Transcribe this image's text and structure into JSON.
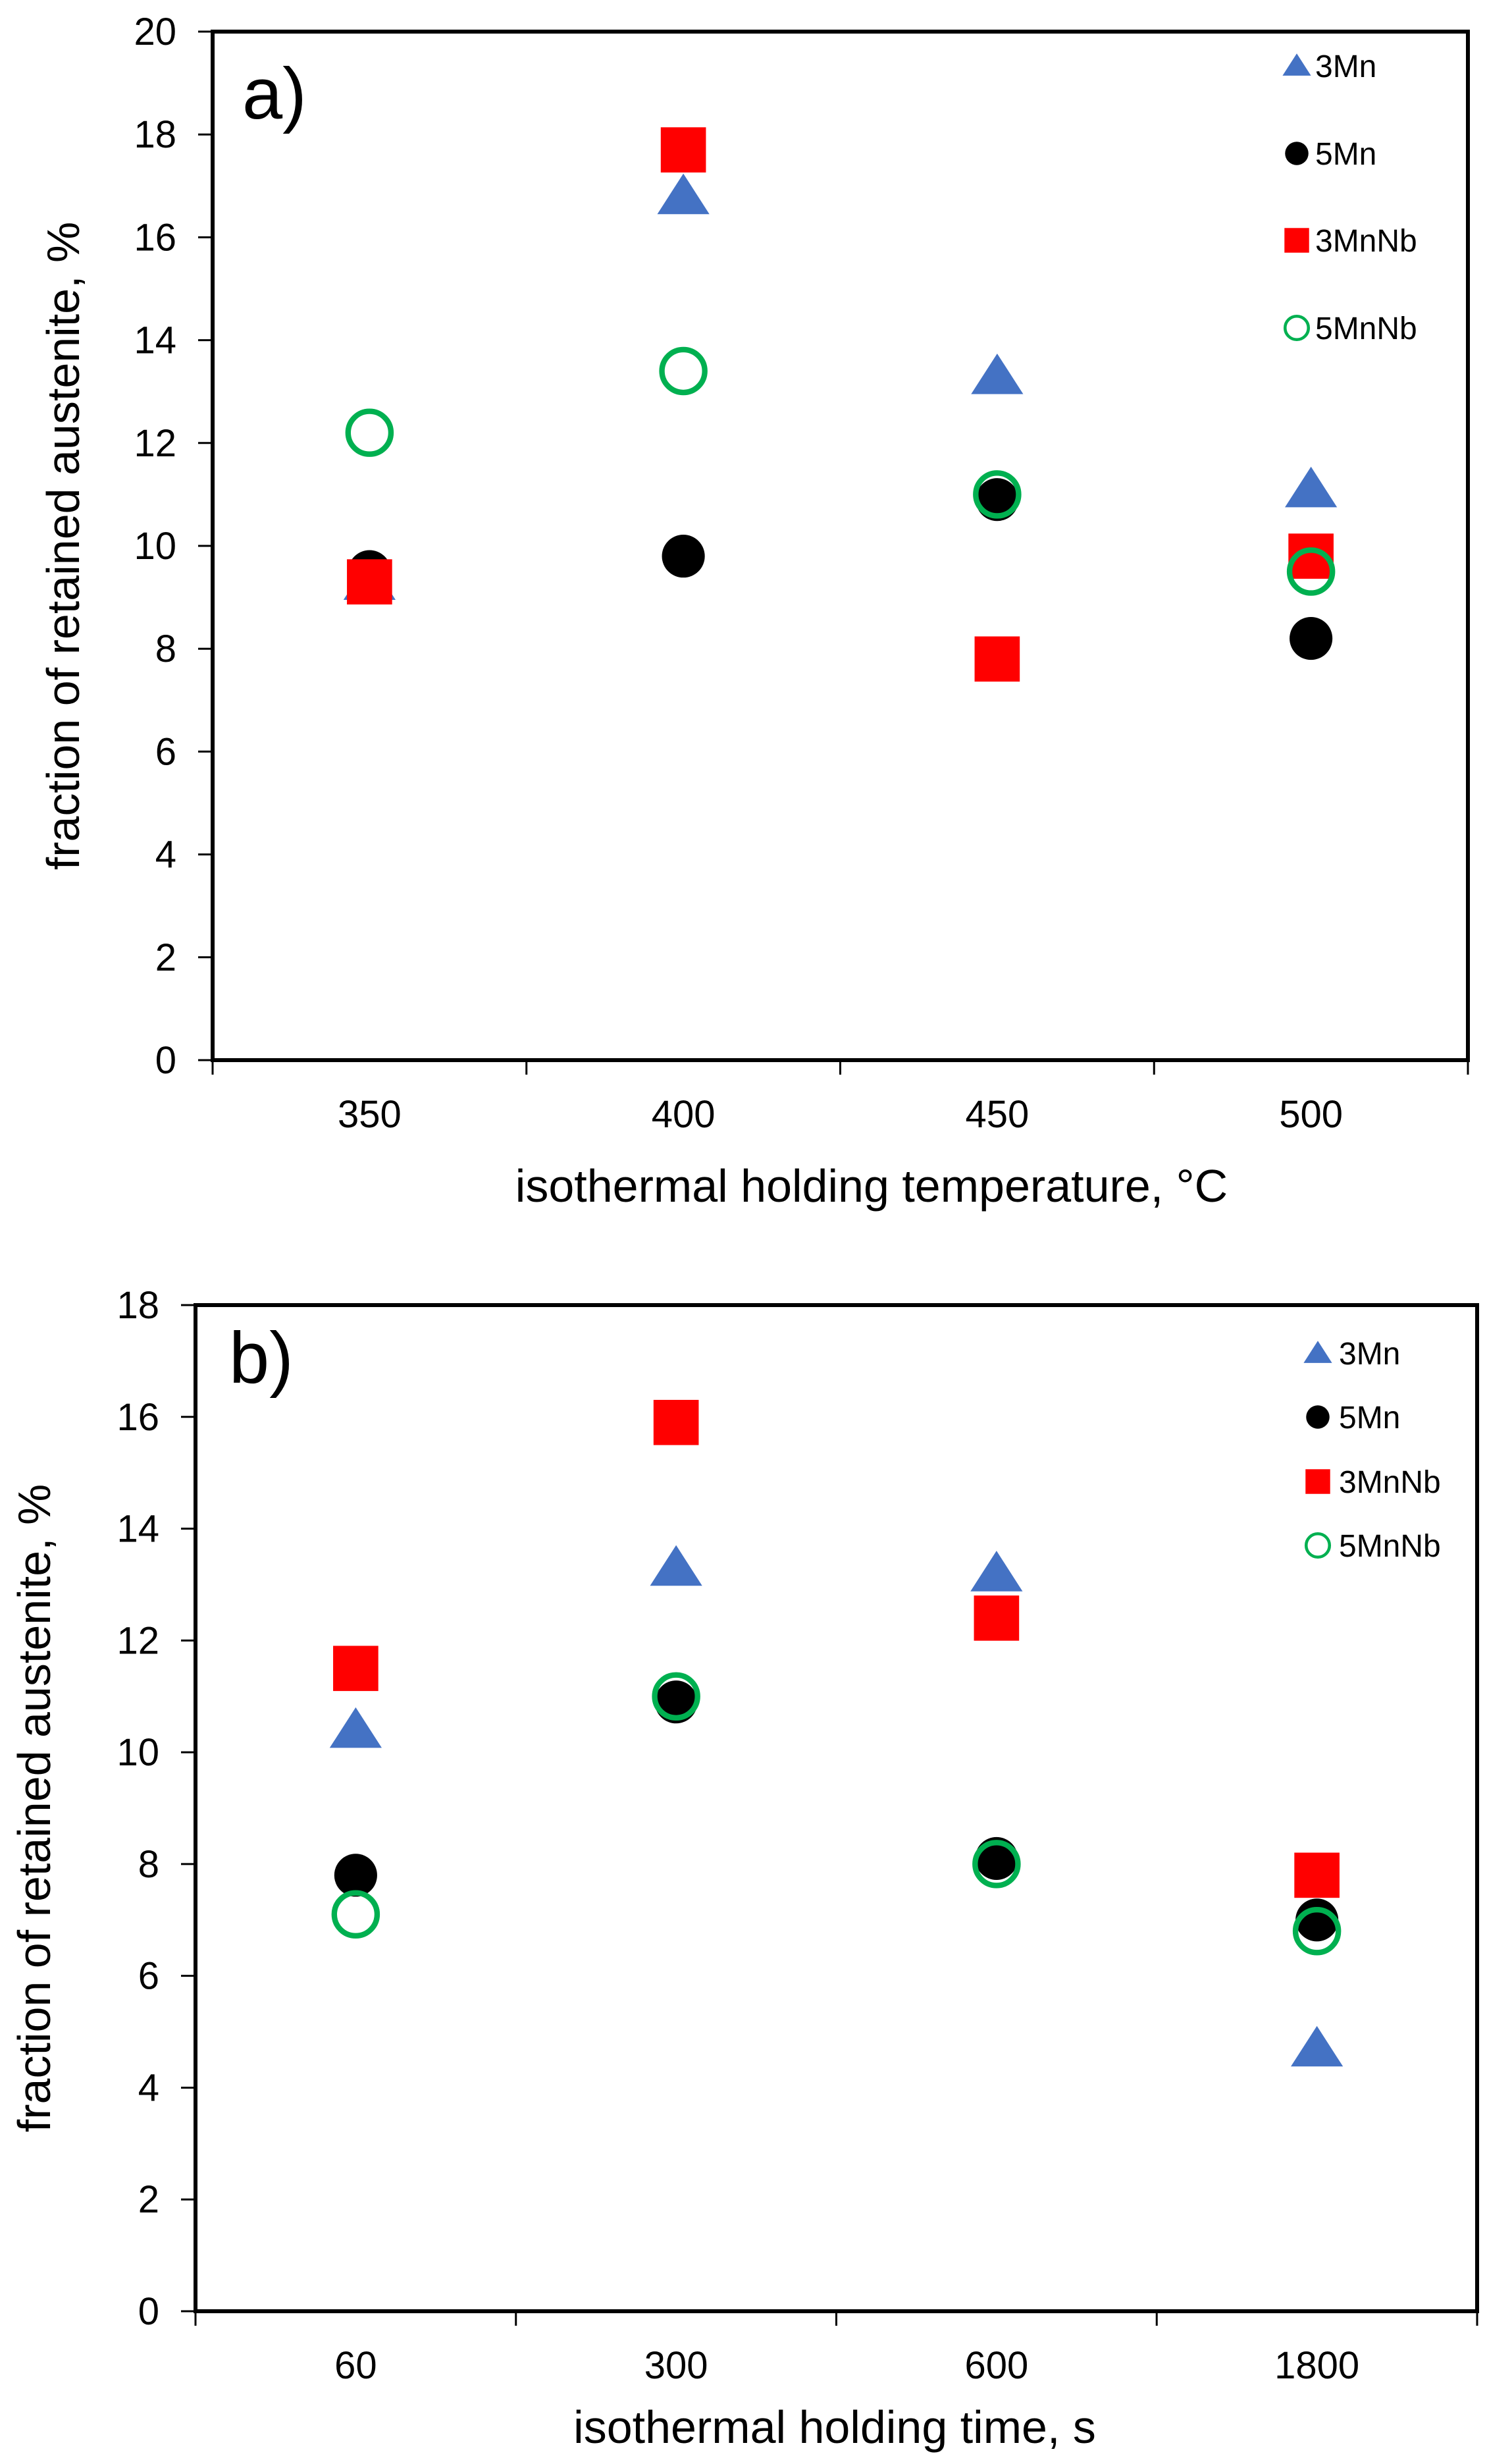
{
  "chart_data": [
    {
      "type": "scatter",
      "panel_label": "a)",
      "xlabel": "isothermal holding temperature, °C",
      "ylabel": "fraction of retained austenite, %",
      "categories": [
        "350",
        "400",
        "450",
        "500"
      ],
      "ylim": [
        0,
        20
      ],
      "yticks": [
        "0",
        "2",
        "4",
        "6",
        "8",
        "10",
        "12",
        "14",
        "16",
        "18",
        "20"
      ],
      "grid": false,
      "legend_position": "top-right",
      "series": [
        {
          "name": "3Mn",
          "marker": "triangle",
          "color": "#4472C4",
          "values": [
            9.3,
            16.8,
            13.3,
            11.1
          ]
        },
        {
          "name": "5Mn",
          "marker": "filled-circle",
          "color": "#000000",
          "values": [
            9.5,
            9.8,
            10.9,
            8.2
          ]
        },
        {
          "name": "3MnNb",
          "marker": "square",
          "color": "#FF0000",
          "values": [
            9.3,
            17.7,
            7.8,
            9.8
          ]
        },
        {
          "name": "5MnNb",
          "marker": "open-circle",
          "color": "#00B050",
          "values": [
            12.2,
            13.4,
            11.0,
            9.5
          ]
        }
      ]
    },
    {
      "type": "scatter",
      "panel_label": "b)",
      "xlabel": "isothermal holding time, s",
      "ylabel": "fraction of retained austenite, %",
      "categories": [
        "60",
        "300",
        "600",
        "1800"
      ],
      "ylim": [
        0,
        18
      ],
      "yticks": [
        "0",
        "2",
        "4",
        "6",
        "8",
        "10",
        "12",
        "14",
        "16",
        "18"
      ],
      "grid": false,
      "legend_position": "top-right",
      "series": [
        {
          "name": "3Mn",
          "marker": "triangle",
          "color": "#4472C4",
          "values": [
            10.4,
            13.3,
            13.2,
            4.7
          ]
        },
        {
          "name": "5Mn",
          "marker": "filled-circle",
          "color": "#000000",
          "values": [
            7.8,
            10.9,
            8.1,
            7.0
          ]
        },
        {
          "name": "3MnNb",
          "marker": "square",
          "color": "#FF0000",
          "values": [
            11.5,
            15.9,
            12.4,
            7.8
          ]
        },
        {
          "name": "5MnNb",
          "marker": "open-circle",
          "color": "#00B050",
          "values": [
            7.1,
            11.0,
            8.0,
            6.8
          ]
        }
      ]
    }
  ]
}
